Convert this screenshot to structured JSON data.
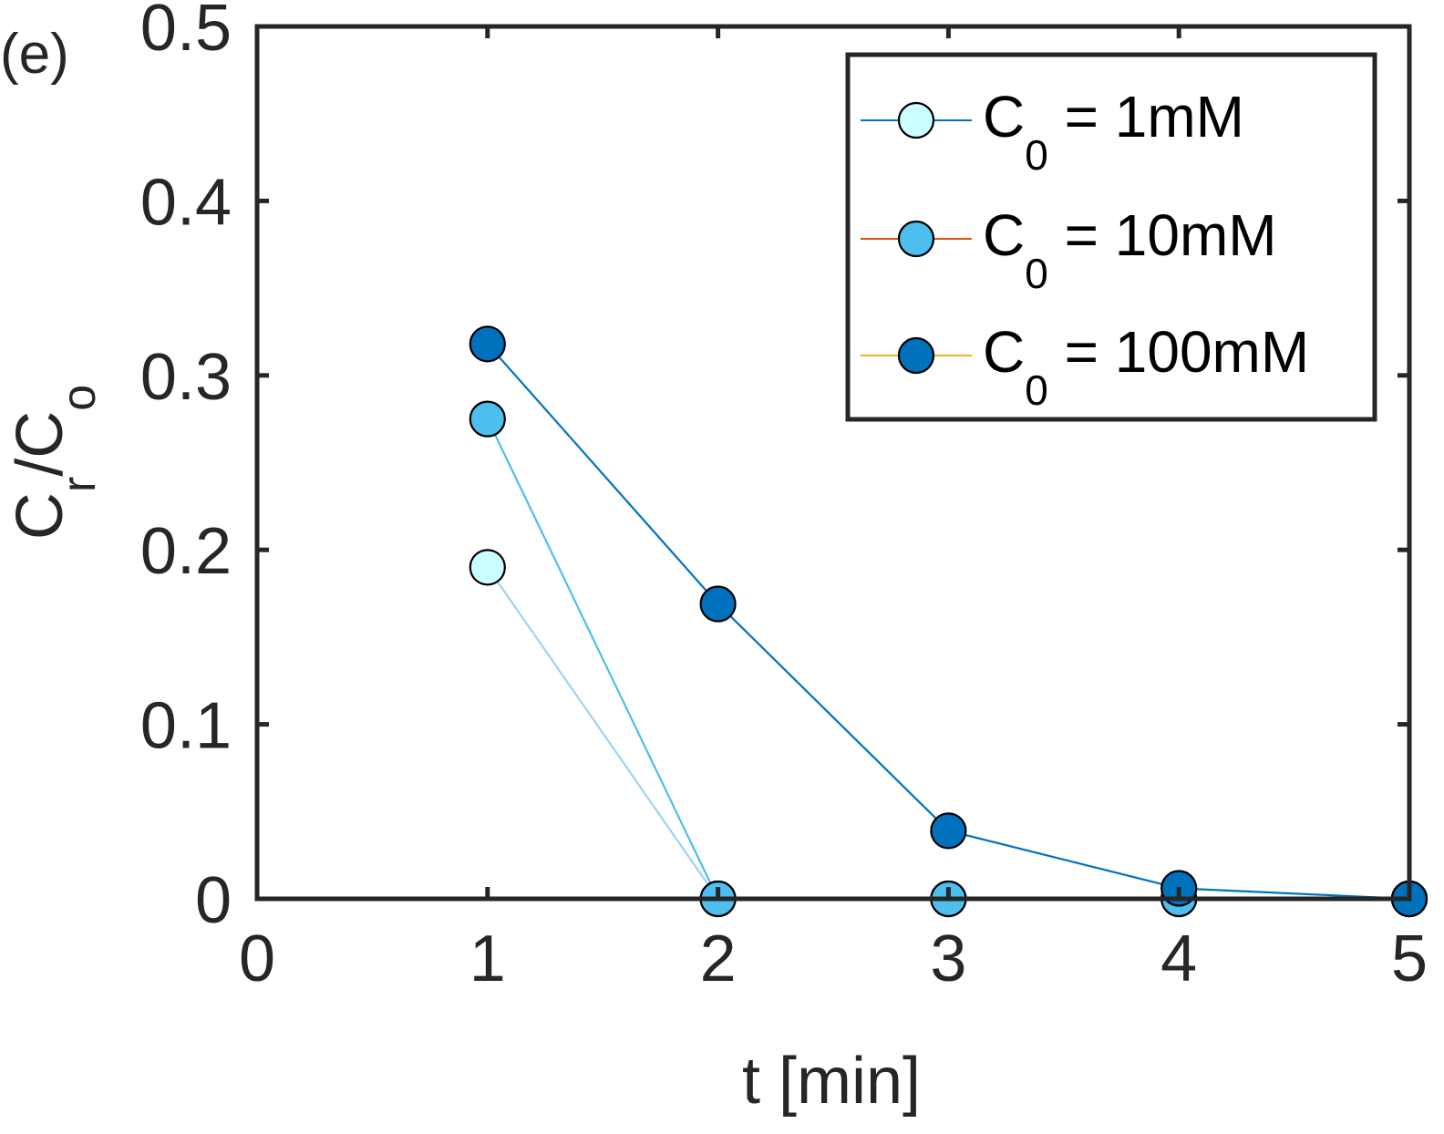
{
  "chart_data": {
    "type": "line",
    "panel_label": "(e)",
    "xlabel": "t [min]",
    "ylabel": {
      "main": "C",
      "sub1": "r",
      "mid": "/C",
      "sub2": "o"
    },
    "xlim": [
      0,
      5
    ],
    "ylim": [
      0,
      0.5
    ],
    "xticks": [
      "0",
      "1",
      "2",
      "3",
      "4",
      "5"
    ],
    "yticks": [
      "0",
      "0.1",
      "0.2",
      "0.3",
      "0.4",
      "0.5"
    ],
    "grid": false,
    "legend_position": "top-right",
    "series": [
      {
        "legend": {
          "main": "C",
          "sub": "0",
          "rest": " = 1mM"
        },
        "line_color": "#0072BD",
        "data_line_color": "#9BD4F2",
        "marker_fill": "#CCFFFF",
        "x": [
          1,
          2,
          3,
          4,
          5
        ],
        "y": [
          0.19,
          0,
          0,
          0,
          0
        ]
      },
      {
        "legend": {
          "main": "C",
          "sub": "0",
          "rest": " = 10mM"
        },
        "line_color": "#D95319",
        "data_line_color": "#4DBEEE",
        "marker_fill": "#4DBEEE",
        "x": [
          1,
          2,
          3,
          4,
          5
        ],
        "y": [
          0.275,
          0,
          0,
          0,
          0
        ]
      },
      {
        "legend": {
          "main": "C",
          "sub": "0",
          "rest": " = 100mM"
        },
        "line_color": "#EDB120",
        "data_line_color": "#0072BD",
        "marker_fill": "#0072BD",
        "x": [
          1,
          2,
          3,
          4,
          5
        ],
        "y": [
          0.318,
          0.169,
          0.039,
          0.006,
          0
        ]
      }
    ]
  }
}
